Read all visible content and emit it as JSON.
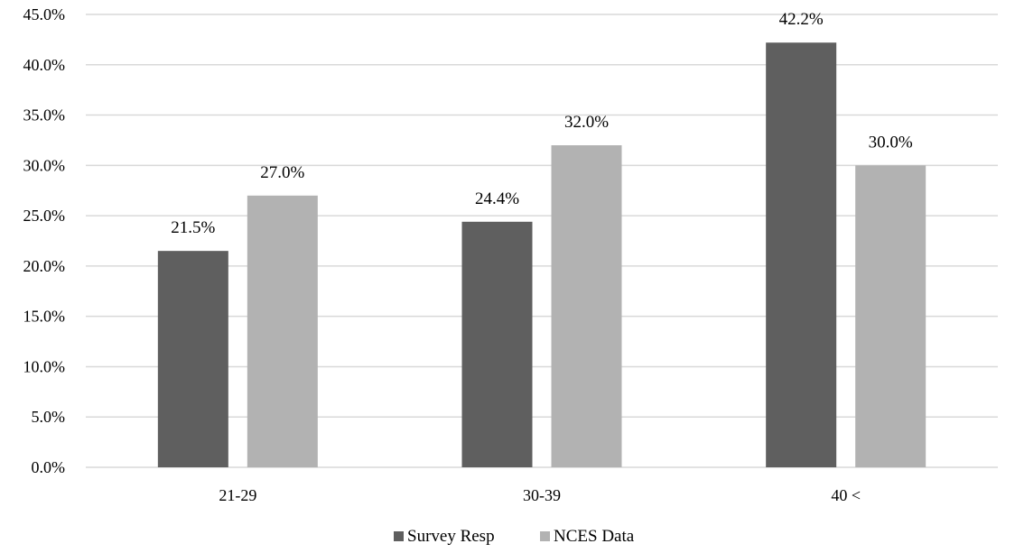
{
  "chart_data": {
    "type": "bar",
    "categories": [
      "21-29",
      "30-39",
      "40 <"
    ],
    "series": [
      {
        "name": "Survey Resp",
        "values": [
          21.5,
          24.4,
          42.2
        ],
        "color": "#5f5f5f"
      },
      {
        "name": "NCES Data",
        "values": [
          27.0,
          32.0,
          30.0
        ],
        "color": "#b2b2b2"
      }
    ],
    "data_labels": [
      [
        "21.5%",
        "24.4%",
        "42.2%"
      ],
      [
        "27.0%",
        "32.0%",
        "30.0%"
      ]
    ],
    "y_ticks": [
      0,
      5,
      10,
      15,
      20,
      25,
      30,
      35,
      40,
      45
    ],
    "y_tick_labels": [
      "0.0%",
      "5.0%",
      "10.0%",
      "15.0%",
      "20.0%",
      "25.0%",
      "30.0%",
      "35.0%",
      "40.0%",
      "45.0%"
    ],
    "ylim": [
      0,
      45
    ],
    "title": "",
    "xlabel": "",
    "ylabel": "",
    "grid": true,
    "grid_color": "#d9d9d9",
    "legend_position": "bottom"
  }
}
